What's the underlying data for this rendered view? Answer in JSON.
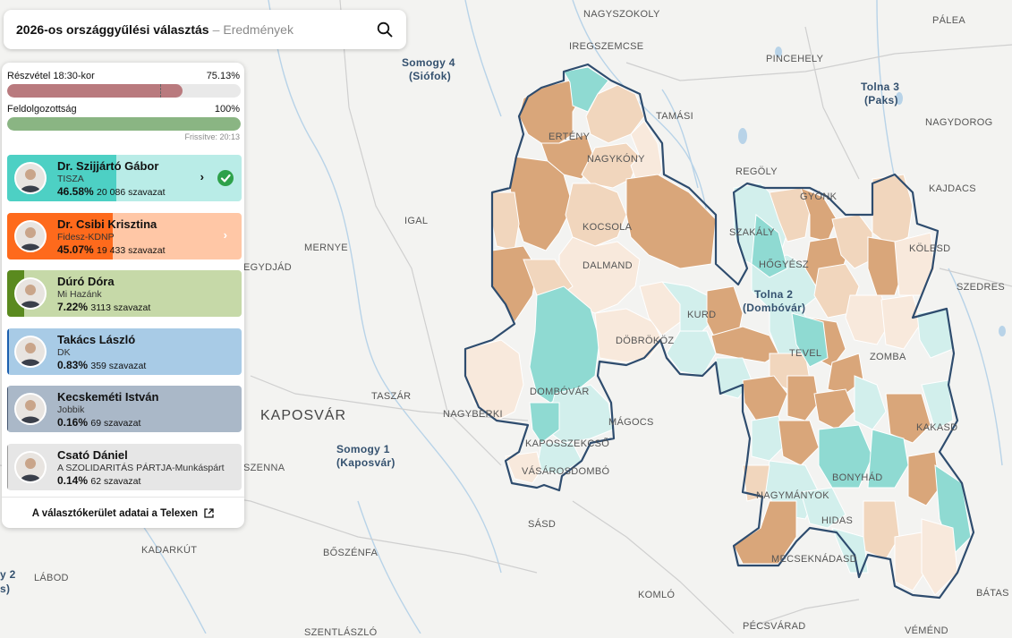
{
  "search": {
    "title": "2026-os országgyűlési választás",
    "separator": "–",
    "subtitle": "Eredmények",
    "icon": "search-icon"
  },
  "stats": {
    "turnout_label": "Részvétel 18:30-kor",
    "turnout_value": "75.13%",
    "turnout_fraction": 0.7513,
    "processed_label": "Feldolgozottság",
    "processed_value": "100%",
    "processed_fraction": 1.0,
    "updated": "Frissítve: 20:13"
  },
  "candidates": [
    {
      "name": "Dr. Szijjártó Gábor",
      "party": "TISZA",
      "pct": "46.58%",
      "votes": "20 086 szavazat",
      "fraction": 0.4658,
      "color": "#4dd0c4",
      "light": "#b9ece7",
      "winner": true,
      "chevron": "›"
    },
    {
      "name": "Dr. Csibi Krisztina",
      "party": "Fidesz-KDNP",
      "pct": "45.07%",
      "votes": "19 433 szavazat",
      "fraction": 0.4507,
      "color": "#fe6a1c",
      "light": "#ffc7a6",
      "winner": false,
      "chevron": "›"
    },
    {
      "name": "Dúró Dóra",
      "party": "Mi Hazánk",
      "pct": "7.22%",
      "votes": "3113 szavazat",
      "fraction": 0.0722,
      "color": "#5a8a1f",
      "light": "#c6d9a8",
      "winner": false
    },
    {
      "name": "Takács László",
      "party": "DK",
      "pct": "0.83%",
      "votes": "359 szavazat",
      "fraction": 0.0083,
      "color": "#1c5fae",
      "light": "#a8cbe6",
      "winner": false
    },
    {
      "name": "Kecskeméti István",
      "party": "Jobbik",
      "pct": "0.16%",
      "votes": "69 szavazat",
      "fraction": 0.0016,
      "color": "#44556e",
      "light": "#aab8c8",
      "winner": false
    },
    {
      "name": "Csató Dániel",
      "party": "A SZOLIDARITÁS PÁRTJA-Munkáspárt",
      "pct": "0.14%",
      "votes": "62 szavazat",
      "fraction": 0.0014,
      "color": "#999999",
      "light": "#e6e6e6",
      "winner": false
    }
  ],
  "footer": {
    "label": "A választókerület adatai a Telexen",
    "icon": "external-link-icon"
  },
  "map": {
    "colors": {
      "tisza": "#8fdad2",
      "tisza_light": "#d2efec",
      "fidesz": "#d9a67a",
      "fidesz_light": "#f1d6bd",
      "fidesz_pale": "#f8e9dc",
      "outline": "#2e4c6e"
    },
    "labels": [
      {
        "text": "NAGYSZOKOLY",
        "kind": "place"
      },
      {
        "text": "PÁLEA",
        "kind": "place"
      },
      {
        "text": "IREGSZEMCSE",
        "kind": "place"
      },
      {
        "text": "Somogy 4",
        "kind": "district"
      },
      {
        "text": "(Siófok)",
        "kind": "district"
      },
      {
        "text": "PINCEHELY",
        "kind": "place"
      },
      {
        "text": "Tolna 3",
        "kind": "district"
      },
      {
        "text": "(Paks)",
        "kind": "district"
      },
      {
        "text": "TAMÁSI",
        "kind": "place"
      },
      {
        "text": "NAGYDOROG",
        "kind": "place"
      },
      {
        "text": "ERTÉNY",
        "kind": "place"
      },
      {
        "text": "NAGYKÓNY",
        "kind": "place"
      },
      {
        "text": "REGÖLY",
        "kind": "place"
      },
      {
        "text": "GYÖNK",
        "kind": "place"
      },
      {
        "text": "KAJDACS",
        "kind": "place"
      },
      {
        "text": "IGAL",
        "kind": "place"
      },
      {
        "text": "KOCSOLA",
        "kind": "place"
      },
      {
        "text": "SZAKÁLY",
        "kind": "place"
      },
      {
        "text": "KÖLESD",
        "kind": "place"
      },
      {
        "text": "MERNYE",
        "kind": "place"
      },
      {
        "text": "DALMAND",
        "kind": "place"
      },
      {
        "text": "HŐGYÉSZ",
        "kind": "place"
      },
      {
        "text": "EGYDJÁD",
        "kind": "place"
      },
      {
        "text": "SZEDRES",
        "kind": "place"
      },
      {
        "text": "Tolna 2",
        "kind": "district"
      },
      {
        "text": "(Dombóvár)",
        "kind": "district"
      },
      {
        "text": "KURD",
        "kind": "place"
      },
      {
        "text": "DÖBRÖKÖZ",
        "kind": "place"
      },
      {
        "text": "TEVEL",
        "kind": "place"
      },
      {
        "text": "ZOMBA",
        "kind": "place"
      },
      {
        "text": "TASZÁR",
        "kind": "place"
      },
      {
        "text": "DOMBÓVÁR",
        "kind": "place"
      },
      {
        "text": "KAPOSVÁR",
        "kind": "city"
      },
      {
        "text": "NAGYBERKI",
        "kind": "place"
      },
      {
        "text": "MÁGOCS",
        "kind": "place"
      },
      {
        "text": "KAKASD",
        "kind": "place"
      },
      {
        "text": "Somogy 1",
        "kind": "district"
      },
      {
        "text": "(Kaposvár)",
        "kind": "district"
      },
      {
        "text": "KAPOSSZEKCSŐ",
        "kind": "place"
      },
      {
        "text": "VÁSÁROSDOMBÓ",
        "kind": "place"
      },
      {
        "text": "SZENNA",
        "kind": "place"
      },
      {
        "text": "BONYHÁD",
        "kind": "place"
      },
      {
        "text": "NAGYMÁNYOK",
        "kind": "place"
      },
      {
        "text": "HIDAS",
        "kind": "place"
      },
      {
        "text": "SÁSD",
        "kind": "place"
      },
      {
        "text": "KADARKÚT",
        "kind": "place"
      },
      {
        "text": "BŐSZÉNFA",
        "kind": "place"
      },
      {
        "text": "MECSEKNÁDASD",
        "kind": "place"
      },
      {
        "text": "y 2",
        "kind": "district"
      },
      {
        "text": "s)",
        "kind": "district"
      },
      {
        "text": "LÁBOD",
        "kind": "place"
      },
      {
        "text": "KOMLÓ",
        "kind": "place"
      },
      {
        "text": "BÁTAS",
        "kind": "place"
      },
      {
        "text": "SZENTLÁSZLÓ",
        "kind": "place"
      },
      {
        "text": "PÉCSVÁRAD",
        "kind": "place"
      },
      {
        "text": "VÉMÉND",
        "kind": "place"
      }
    ]
  }
}
